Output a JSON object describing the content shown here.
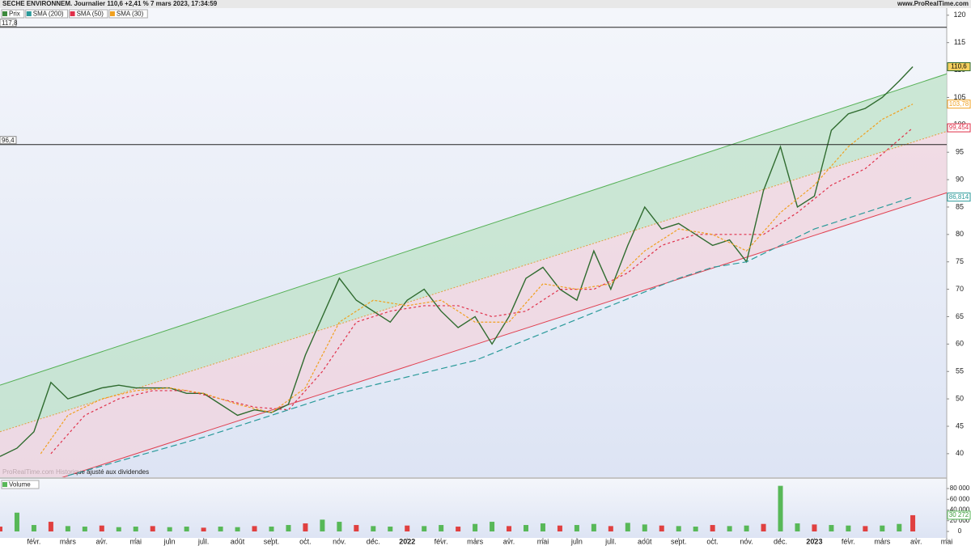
{
  "header": {
    "title": "SECHE ENVIRONNEM. Journalier 110,6 +2,41 % 7 mars 2023, 17:34:59",
    "site": "www.ProRealTime.com",
    "footer": "ProRealTime.com  Historique ajusté aux dividendes"
  },
  "chart_data": [
    {
      "type": "line",
      "legend": [
        "Prix",
        "SMA (200)",
        "SMA (50)",
        "SMA (30)"
      ],
      "legend_colors": [
        "#3d8a3d",
        "#2a9a9a",
        "#e0304a",
        "#f0a020"
      ],
      "xlim": [
        0,
        27.9
      ],
      "ylim": [
        35.7,
        121.3
      ],
      "xticks": [
        {
          "value": 1,
          "label": "févr."
        },
        {
          "value": 2,
          "label": "mars"
        },
        {
          "value": 3,
          "label": "avr."
        },
        {
          "value": 4,
          "label": "mai"
        },
        {
          "value": 5,
          "label": "juin"
        },
        {
          "value": 6,
          "label": "juil."
        },
        {
          "value": 7,
          "label": "août"
        },
        {
          "value": 8,
          "label": "sept."
        },
        {
          "value": 9,
          "label": "oct."
        },
        {
          "value": 10,
          "label": "nov."
        },
        {
          "value": 11,
          "label": "déc."
        },
        {
          "value": 12,
          "label": "2022"
        },
        {
          "value": 13,
          "label": "févr."
        },
        {
          "value": 14,
          "label": "mars"
        },
        {
          "value": 15,
          "label": "avr."
        },
        {
          "value": 16,
          "label": "mai"
        },
        {
          "value": 17,
          "label": "juin"
        },
        {
          "value": 18,
          "label": "juil."
        },
        {
          "value": 19,
          "label": "août"
        },
        {
          "value": 20,
          "label": "sept."
        },
        {
          "value": 21,
          "label": "oct."
        },
        {
          "value": 22,
          "label": "nov."
        },
        {
          "value": 23,
          "label": "déc."
        },
        {
          "value": 24,
          "label": "2023"
        },
        {
          "value": 25,
          "label": "févr."
        },
        {
          "value": 26,
          "label": "mars"
        },
        {
          "value": 27,
          "label": "avr."
        },
        {
          "value": 27.9,
          "label": "mai"
        }
      ],
      "yticks": [
        40,
        45,
        50,
        55,
        60,
        65,
        70,
        75,
        80,
        85,
        90,
        95,
        100,
        105,
        110,
        115,
        120
      ],
      "hlines": [
        {
          "value": 117.8,
          "label": "117,8"
        },
        {
          "value": 96.4,
          "label": "96,4"
        }
      ],
      "channel_x": [
        0,
        28
      ],
      "channel": {
        "upper": [
          52.5,
          109.5
        ],
        "middle": [
          44,
          99
        ],
        "lower": [
          32,
          87.8
        ]
      },
      "series": [
        {
          "name": "Prix",
          "color": "#2f6b2f",
          "x": [
            0,
            0.5,
            1,
            1.5,
            2,
            2.5,
            3,
            3.5,
            4,
            4.5,
            5,
            5.5,
            6,
            6.5,
            7,
            7.5,
            8,
            8.5,
            9,
            9.5,
            10,
            10.5,
            11,
            11.5,
            12,
            12.5,
            13,
            13.5,
            14,
            14.5,
            15,
            15.5,
            16,
            16.5,
            17,
            17.5,
            18,
            18.5,
            19,
            19.5,
            20,
            20.5,
            21,
            21.5,
            22,
            22.5,
            23,
            23.5,
            24,
            24.5,
            25,
            25.5,
            26,
            26.5,
            26.9
          ],
          "values": [
            39.5,
            41,
            44,
            53,
            50,
            51,
            52,
            52.5,
            52,
            52,
            52,
            51,
            51,
            49,
            47,
            48,
            47.5,
            49,
            58,
            65,
            72,
            68,
            66,
            64,
            68,
            70,
            66,
            63,
            65,
            60,
            65,
            72,
            74,
            70,
            68,
            77,
            70,
            78,
            85,
            81,
            82,
            80,
            78,
            79,
            75,
            88,
            96,
            85,
            87,
            99,
            102,
            103,
            105,
            108,
            110.6
          ],
          "value_labels": [
            null,
            null,
            null,
            null,
            null,
            null,
            null,
            null,
            null,
            null,
            null,
            null,
            null,
            null,
            null,
            null,
            null,
            null,
            null,
            null,
            null,
            null,
            null,
            null,
            null,
            null,
            null,
            null,
            null,
            null,
            null,
            null,
            null,
            null,
            null,
            null,
            null,
            null,
            null,
            null,
            null,
            null,
            null,
            null,
            null,
            null,
            null,
            null,
            null,
            null,
            null,
            null,
            null,
            null,
            "110,6"
          ]
        },
        {
          "name": "SMA (200)",
          "color": "#2a9a9a",
          "x": [
            2,
            4,
            6,
            8,
            10,
            12,
            14,
            16,
            18,
            20,
            21,
            22,
            23,
            24,
            25,
            26,
            26.9
          ],
          "values": [
            36,
            39.5,
            43,
            47,
            51,
            54,
            57,
            62,
            67,
            72,
            74,
            75,
            78,
            81,
            83,
            85,
            86.814
          ],
          "value_labels": [
            null,
            null,
            null,
            null,
            null,
            null,
            null,
            null,
            null,
            null,
            null,
            null,
            null,
            null,
            null,
            null,
            "86,814"
          ]
        },
        {
          "name": "SMA (50)",
          "color": "#e0304a",
          "x": [
            1.5,
            2.5,
            3.5,
            4.5,
            5.5,
            6.5,
            7.5,
            8.5,
            9.5,
            10.5,
            11.5,
            12.5,
            13.5,
            14.5,
            15.5,
            16.5,
            17.5,
            18.5,
            19.5,
            20.5,
            21.5,
            22.5,
            23.5,
            24.5,
            25.5,
            26.9
          ],
          "values": [
            40,
            47,
            50,
            51.5,
            51.5,
            50,
            48.5,
            48,
            55,
            64,
            66,
            67,
            67,
            65,
            66,
            70,
            70,
            73,
            78,
            80,
            80,
            80,
            84,
            89,
            92,
            99.454
          ],
          "value_labels": [
            null,
            null,
            null,
            null,
            null,
            null,
            null,
            null,
            null,
            null,
            null,
            null,
            null,
            null,
            null,
            null,
            null,
            null,
            null,
            null,
            null,
            null,
            null,
            null,
            null,
            "99,454"
          ]
        },
        {
          "name": "SMA (30)",
          "color": "#f0a020",
          "x": [
            1.2,
            2,
            3,
            4,
            5,
            6,
            7,
            8,
            9,
            10,
            11,
            12,
            13,
            14,
            15,
            16,
            17,
            18,
            19,
            20,
            21,
            22,
            23,
            24,
            25,
            26,
            26.9
          ],
          "values": [
            40,
            47,
            50,
            51.5,
            52,
            51,
            49,
            47.5,
            52,
            64,
            68,
            67,
            68,
            64,
            64,
            71,
            70,
            71,
            77,
            81,
            80,
            77,
            84,
            89,
            96,
            101,
            103.78
          ],
          "value_labels": [
            null,
            null,
            null,
            null,
            null,
            null,
            null,
            null,
            null,
            null,
            null,
            null,
            null,
            null,
            null,
            null,
            null,
            null,
            null,
            null,
            null,
            null,
            null,
            null,
            null,
            null,
            "103,78"
          ]
        }
      ]
    },
    {
      "type": "bar",
      "legend": [
        "Volume"
      ],
      "color": "#58b858",
      "highlight_color": "#e04040",
      "xlim": [
        0,
        27.9
      ],
      "ylim": [
        0,
        98000
      ],
      "yticks": [
        0,
        {
          "value": 20000,
          "label": "20 000"
        },
        {
          "value": 40000,
          "label": "40 000"
        },
        {
          "value": 60000,
          "label": "60 000"
        },
        {
          "value": 80000,
          "label": "80 000"
        }
      ],
      "x": [
        0,
        0.5,
        1,
        1.5,
        2,
        2.5,
        3,
        3.5,
        4,
        4.5,
        5,
        5.5,
        6,
        6.5,
        7,
        7.5,
        8,
        8.5,
        9,
        9.5,
        10,
        10.5,
        11,
        11.5,
        12,
        12.5,
        13,
        13.5,
        14,
        14.5,
        15,
        15.5,
        16,
        16.5,
        17,
        17.5,
        18,
        18.5,
        19,
        19.5,
        20,
        20.5,
        21,
        21.5,
        22,
        22.5,
        23,
        23.5,
        24,
        24.5,
        25,
        25.5,
        26,
        26.5,
        26.9
      ],
      "values": [
        9000,
        35000,
        12000,
        18000,
        10000,
        9000,
        11000,
        8000,
        9000,
        10000,
        8000,
        9000,
        7000,
        9000,
        8000,
        10000,
        9000,
        12000,
        15000,
        22000,
        18000,
        12000,
        10000,
        9000,
        11000,
        10000,
        12000,
        9000,
        14000,
        18000,
        10000,
        12000,
        15000,
        11000,
        12000,
        14000,
        10000,
        16000,
        13000,
        11000,
        10000,
        9000,
        12000,
        10000,
        11000,
        14000,
        85000,
        15000,
        13000,
        12000,
        11000,
        10000,
        11000,
        14000,
        30272
      ],
      "value_labels": [
        null,
        null,
        null,
        null,
        null,
        null,
        null,
        null,
        null,
        null,
        null,
        null,
        null,
        null,
        null,
        null,
        null,
        null,
        null,
        null,
        null,
        null,
        null,
        null,
        null,
        null,
        null,
        null,
        null,
        null,
        null,
        null,
        null,
        null,
        null,
        null,
        null,
        null,
        null,
        null,
        null,
        null,
        null,
        null,
        null,
        null,
        null,
        null,
        null,
        null,
        null,
        null,
        null,
        null,
        "30 272"
      ]
    }
  ]
}
